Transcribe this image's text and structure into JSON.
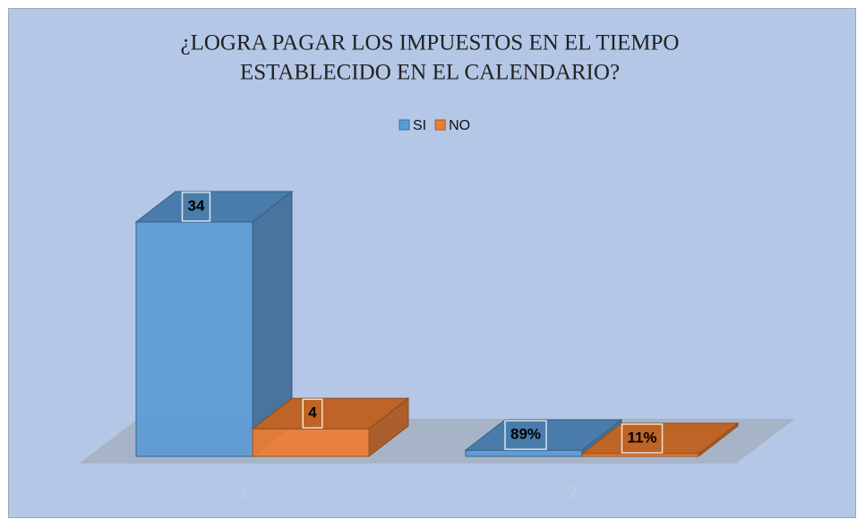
{
  "chart_data": {
    "type": "bar3d",
    "title": [
      "¿LOGRA PAGAR LOS IMPUESTOS EN EL TIEMPO",
      "ESTABLECIDO EN EL CALENDARIO?"
    ],
    "categories": [
      "1",
      "2"
    ],
    "series": [
      {
        "name": "SI",
        "color": "#5b9bd5",
        "values": [
          34,
          0.89
        ],
        "value_labels": [
          "34",
          "89%"
        ]
      },
      {
        "name": "NO",
        "color": "#ed7d31",
        "values": [
          4,
          0.11
        ],
        "value_labels": [
          "4",
          "11%"
        ]
      }
    ],
    "legend": "top"
  }
}
